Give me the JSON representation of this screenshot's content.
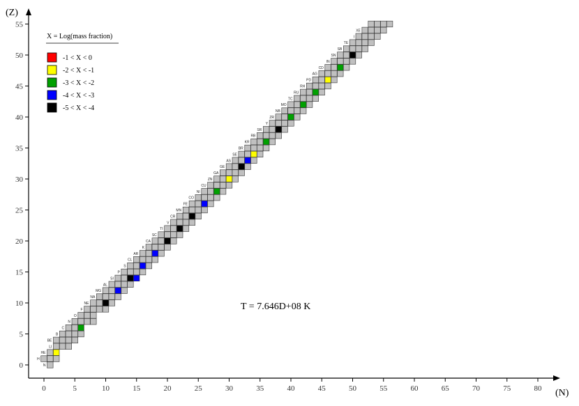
{
  "chart_data": {
    "type": "heatmap",
    "title": "",
    "xlabel": "(N)",
    "ylabel": "(Z)",
    "xlim": [
      -2,
      82
    ],
    "ylim": [
      -1,
      55
    ],
    "x_ticks": [
      0,
      5,
      10,
      15,
      20,
      25,
      30,
      35,
      40,
      45,
      50,
      55,
      60,
      65,
      70,
      75,
      80
    ],
    "y_ticks": [
      0,
      5,
      10,
      15,
      20,
      25,
      30,
      35,
      40,
      45,
      50,
      55
    ],
    "annotation": "T = 7.646D+08 K",
    "legend": {
      "title": "X = Log(mass fraction)",
      "position": "top-left",
      "entries": [
        {
          "label": "-1 < X < 0",
          "color": "#ff0000"
        },
        {
          "label": "-2 < X < -1",
          "color": "#ffff00"
        },
        {
          "label": "-3 < X < -2",
          "color": "#00a000"
        },
        {
          "label": "-4 < X < -3",
          "color": "#0000ff"
        },
        {
          "label": "-5 < X < -4",
          "color": "#000000"
        }
      ]
    },
    "colors": {
      "network": "#c0c0c0",
      "bin_1": "#ff0000",
      "bin_2": "#ffff00",
      "bin_3": "#00a000",
      "bin_4": "#0000ff",
      "bin_5": "#000000"
    },
    "network_rows": [
      {
        "z": 0,
        "n": [
          1,
          1
        ]
      },
      {
        "z": 1,
        "n": [
          0,
          2
        ]
      },
      {
        "z": 2,
        "n": [
          1,
          2
        ]
      },
      {
        "z": 3,
        "n": [
          2,
          4
        ]
      },
      {
        "z": 4,
        "n": [
          2,
          5
        ]
      },
      {
        "z": 5,
        "n": [
          3,
          6
        ]
      },
      {
        "z": 6,
        "n": [
          4,
          6
        ]
      },
      {
        "z": 7,
        "n": [
          5,
          8
        ]
      },
      {
        "z": 8,
        "n": [
          6,
          8
        ]
      },
      {
        "z": 9,
        "n": [
          7,
          10
        ]
      },
      {
        "z": 10,
        "n": [
          8,
          11
        ]
      },
      {
        "z": 11,
        "n": [
          9,
          12
        ]
      },
      {
        "z": 12,
        "n": [
          10,
          13
        ]
      },
      {
        "z": 13,
        "n": [
          11,
          14
        ]
      },
      {
        "z": 14,
        "n": [
          12,
          15
        ]
      },
      {
        "z": 15,
        "n": [
          13,
          16
        ]
      },
      {
        "z": 16,
        "n": [
          14,
          17
        ]
      },
      {
        "z": 17,
        "n": [
          15,
          18
        ]
      },
      {
        "z": 18,
        "n": [
          16,
          19
        ]
      },
      {
        "z": 19,
        "n": [
          17,
          20
        ]
      },
      {
        "z": 20,
        "n": [
          18,
          21
        ]
      },
      {
        "z": 21,
        "n": [
          19,
          22
        ]
      },
      {
        "z": 22,
        "n": [
          20,
          23
        ]
      },
      {
        "z": 23,
        "n": [
          21,
          24
        ]
      },
      {
        "z": 24,
        "n": [
          22,
          25
        ]
      },
      {
        "z": 25,
        "n": [
          23,
          26
        ]
      },
      {
        "z": 26,
        "n": [
          24,
          27
        ]
      },
      {
        "z": 27,
        "n": [
          25,
          28
        ]
      },
      {
        "z": 28,
        "n": [
          26,
          29
        ]
      },
      {
        "z": 29,
        "n": [
          27,
          30
        ]
      },
      {
        "z": 30,
        "n": [
          28,
          31
        ]
      },
      {
        "z": 31,
        "n": [
          29,
          32
        ]
      },
      {
        "z": 32,
        "n": [
          30,
          33
        ]
      },
      {
        "z": 33,
        "n": [
          31,
          34
        ]
      },
      {
        "z": 34,
        "n": [
          32,
          35
        ]
      },
      {
        "z": 35,
        "n": [
          33,
          36
        ]
      },
      {
        "z": 36,
        "n": [
          34,
          37
        ]
      },
      {
        "z": 37,
        "n": [
          35,
          38
        ]
      },
      {
        "z": 38,
        "n": [
          36,
          39
        ]
      },
      {
        "z": 39,
        "n": [
          37,
          40
        ]
      },
      {
        "z": 40,
        "n": [
          38,
          41
        ]
      },
      {
        "z": 41,
        "n": [
          39,
          42
        ]
      },
      {
        "z": 42,
        "n": [
          40,
          43
        ]
      },
      {
        "z": 43,
        "n": [
          41,
          44
        ]
      },
      {
        "z": 44,
        "n": [
          42,
          45
        ]
      },
      {
        "z": 45,
        "n": [
          43,
          46
        ]
      },
      {
        "z": 46,
        "n": [
          44,
          47
        ]
      },
      {
        "z": 47,
        "n": [
          45,
          48
        ]
      },
      {
        "z": 48,
        "n": [
          46,
          49
        ]
      },
      {
        "z": 49,
        "n": [
          47,
          50
        ]
      },
      {
        "z": 50,
        "n": [
          48,
          51
        ]
      },
      {
        "z": 51,
        "n": [
          49,
          52
        ]
      },
      {
        "z": 52,
        "n": [
          50,
          53
        ]
      },
      {
        "z": 53,
        "n": [
          51,
          54
        ]
      },
      {
        "z": 54,
        "n": [
          52,
          55
        ]
      },
      {
        "z": 55,
        "n": [
          53,
          56
        ]
      }
    ],
    "colored_cells": [
      {
        "n": 2,
        "z": 2,
        "bin": 2
      },
      {
        "n": 6,
        "z": 6,
        "bin": 3
      },
      {
        "n": 10,
        "z": 10,
        "bin": 5
      },
      {
        "n": 12,
        "z": 12,
        "bin": 4
      },
      {
        "n": 14,
        "z": 14,
        "bin": 5
      },
      {
        "n": 15,
        "z": 14,
        "bin": 4
      },
      {
        "n": 16,
        "z": 16,
        "bin": 4
      },
      {
        "n": 18,
        "z": 18,
        "bin": 4
      },
      {
        "n": 20,
        "z": 20,
        "bin": 5
      },
      {
        "n": 22,
        "z": 22,
        "bin": 5
      },
      {
        "n": 24,
        "z": 24,
        "bin": 5
      },
      {
        "n": 26,
        "z": 26,
        "bin": 4
      },
      {
        "n": 28,
        "z": 28,
        "bin": 3
      },
      {
        "n": 30,
        "z": 30,
        "bin": 2
      },
      {
        "n": 32,
        "z": 32,
        "bin": 5
      },
      {
        "n": 33,
        "z": 33,
        "bin": 4
      },
      {
        "n": 34,
        "z": 34,
        "bin": 2
      },
      {
        "n": 36,
        "z": 36,
        "bin": 3
      },
      {
        "n": 38,
        "z": 38,
        "bin": 5
      },
      {
        "n": 40,
        "z": 40,
        "bin": 3
      },
      {
        "n": 42,
        "z": 42,
        "bin": 3
      },
      {
        "n": 44,
        "z": 44,
        "bin": 3
      },
      {
        "n": 46,
        "z": 46,
        "bin": 2
      },
      {
        "n": 48,
        "z": 48,
        "bin": 3
      },
      {
        "n": 50,
        "z": 50,
        "bin": 5
      },
      {
        "n": 52,
        "z": 50,
        "bin": 2
      },
      {
        "n": 54,
        "z": 51,
        "bin": 3
      },
      {
        "n": 55,
        "z": 51,
        "bin": 1
      },
      {
        "n": 55,
        "z": 52,
        "bin": 4
      },
      {
        "n": 55,
        "z": 53,
        "bin": 2
      }
    ],
    "element_labels": [
      {
        "z": 0,
        "label": "N"
      },
      {
        "z": 1,
        "label": "H"
      },
      {
        "z": 2,
        "label": "HE"
      },
      {
        "z": 3,
        "label": "LI"
      },
      {
        "z": 4,
        "label": "BE"
      },
      {
        "z": 5,
        "label": "B"
      },
      {
        "z": 6,
        "label": "C"
      },
      {
        "z": 7,
        "label": "N"
      },
      {
        "z": 8,
        "label": "O"
      },
      {
        "z": 9,
        "label": "F"
      },
      {
        "z": 10,
        "label": "NE"
      },
      {
        "z": 11,
        "label": "NA"
      },
      {
        "z": 12,
        "label": "MG"
      },
      {
        "z": 13,
        "label": "AL"
      },
      {
        "z": 14,
        "label": "SI"
      },
      {
        "z": 15,
        "label": "P"
      },
      {
        "z": 16,
        "label": "S"
      },
      {
        "z": 17,
        "label": "CL"
      },
      {
        "z": 18,
        "label": "AR"
      },
      {
        "z": 19,
        "label": "K"
      },
      {
        "z": 20,
        "label": "CA"
      },
      {
        "z": 21,
        "label": "SC"
      },
      {
        "z": 22,
        "label": "TI"
      },
      {
        "z": 23,
        "label": "V"
      },
      {
        "z": 24,
        "label": "CR"
      },
      {
        "z": 25,
        "label": "MN"
      },
      {
        "z": 26,
        "label": "FE"
      },
      {
        "z": 27,
        "label": "CO"
      },
      {
        "z": 28,
        "label": "NI"
      },
      {
        "z": 29,
        "label": "CU"
      },
      {
        "z": 30,
        "label": "ZN"
      },
      {
        "z": 31,
        "label": "GA"
      },
      {
        "z": 32,
        "label": "GE"
      },
      {
        "z": 33,
        "label": "AS"
      },
      {
        "z": 34,
        "label": "SE"
      },
      {
        "z": 35,
        "label": "BR"
      },
      {
        "z": 36,
        "label": "KR"
      },
      {
        "z": 37,
        "label": "RB"
      },
      {
        "z": 38,
        "label": "SR"
      },
      {
        "z": 39,
        "label": "Y"
      },
      {
        "z": 40,
        "label": "ZR"
      },
      {
        "z": 41,
        "label": "NB"
      },
      {
        "z": 42,
        "label": "MO"
      },
      {
        "z": 43,
        "label": "TC"
      },
      {
        "z": 44,
        "label": "RU"
      },
      {
        "z": 45,
        "label": "RH"
      },
      {
        "z": 46,
        "label": "PD"
      },
      {
        "z": 47,
        "label": "AG"
      },
      {
        "z": 48,
        "label": "CD"
      },
      {
        "z": 49,
        "label": "IN"
      },
      {
        "z": 50,
        "label": "SN"
      },
      {
        "z": 51,
        "label": "SB"
      },
      {
        "z": 52,
        "label": "TE"
      },
      {
        "z": 53,
        "label": "I"
      },
      {
        "z": 54,
        "label": "XE"
      }
    ]
  }
}
